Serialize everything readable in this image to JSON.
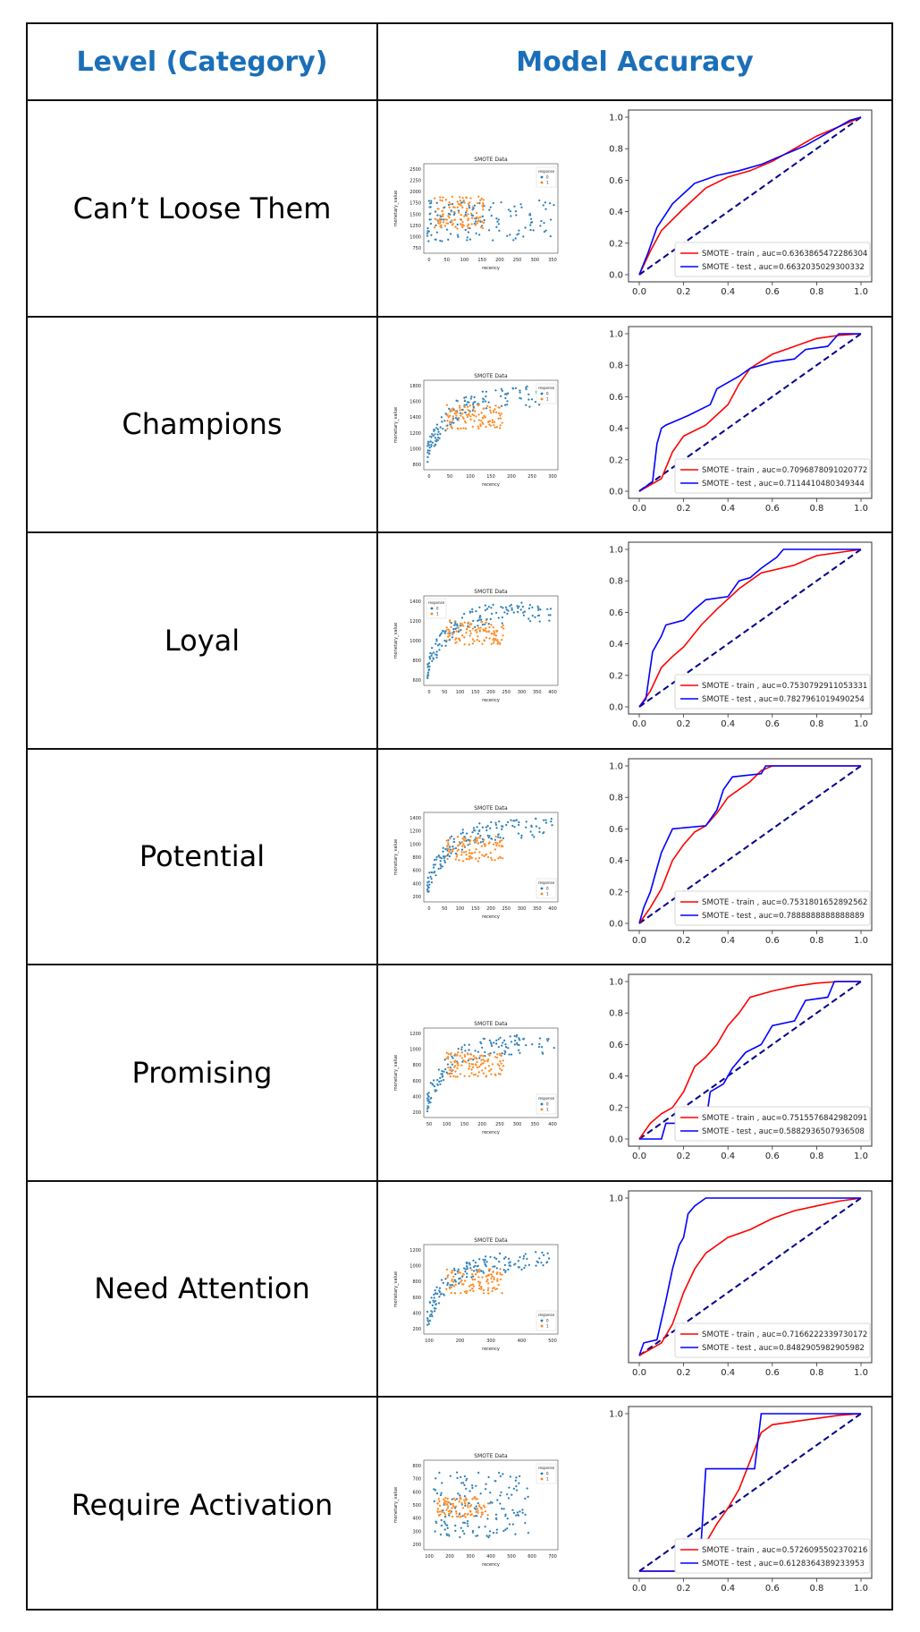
{
  "header": {
    "col1": "Level (Category)",
    "col2": "Model Accuracy"
  },
  "colors": {
    "header": "#1a6fb8",
    "train": "#ff0000",
    "test": "#0000ff",
    "diag": "#00008b",
    "class0": "#1f77b4",
    "class1": "#ff7f0e"
  },
  "rows": [
    {
      "category": "Can’t Loose Them",
      "scatter": {
        "title": "SMOTE Data",
        "xlabel": "recency",
        "ylabel": "monetary_value",
        "legend_title": "response",
        "legend": [
          "0",
          "1"
        ],
        "xticks": [
          "0",
          "50",
          "100",
          "150",
          "200",
          "250",
          "300",
          "350"
        ],
        "yticks": [
          "750",
          "1000",
          "1250",
          "1500",
          "1750",
          "2000",
          "2250",
          "2500"
        ]
      },
      "roc": {
        "train_label": "SMOTE - train , auc=0.6363865472286304",
        "test_label": "SMOTE - test , auc=0.6632035029300332",
        "xticks": [
          "0.0",
          "0.2",
          "0.4",
          "0.6",
          "0.8",
          "1.0"
        ],
        "yticks": [
          "0.0",
          "0.2",
          "0.4",
          "0.6",
          "0.8",
          "1.0"
        ]
      }
    },
    {
      "category": "Champions",
      "scatter": {
        "title": "SMOTE Data",
        "xlabel": "recency",
        "ylabel": "monetary_value",
        "legend_title": "response",
        "legend": [
          "0",
          "1"
        ],
        "xticks": [
          "0",
          "50",
          "100",
          "150",
          "200",
          "250",
          "300"
        ],
        "yticks": [
          "800",
          "1000",
          "1200",
          "1400",
          "1600",
          "1800"
        ]
      },
      "roc": {
        "train_label": "SMOTE - train , auc=0.7096878091020772",
        "test_label": "SMOTE - test , auc=0.7114410480349344",
        "xticks": [
          "0.0",
          "0.2",
          "0.4",
          "0.6",
          "0.8",
          "1.0"
        ],
        "yticks": [
          "0.0",
          "0.2",
          "0.4",
          "0.6",
          "0.8",
          "1.0"
        ]
      }
    },
    {
      "category": "Loyal",
      "scatter": {
        "title": "SMOTE Data",
        "xlabel": "recency",
        "ylabel": "monetary_value",
        "legend_title": "response",
        "legend": [
          "0",
          "1"
        ],
        "xticks": [
          "0",
          "50",
          "100",
          "150",
          "200",
          "250",
          "300",
          "350",
          "400"
        ],
        "yticks": [
          "600",
          "800",
          "1000",
          "1200",
          "1400"
        ]
      },
      "roc": {
        "train_label": "SMOTE - train , auc=0.7530792911053331",
        "test_label": "SMOTE - test , auc=0.7827961019490254",
        "xticks": [
          "0.0",
          "0.2",
          "0.4",
          "0.6",
          "0.8",
          "1.0"
        ],
        "yticks": [
          "0.0",
          "0.2",
          "0.4",
          "0.6",
          "0.8",
          "1.0"
        ]
      }
    },
    {
      "category": "Potential",
      "scatter": {
        "title": "SMOTE Data",
        "xlabel": "recency",
        "ylabel": "monetary_value",
        "legend_title": "response",
        "legend": [
          "0",
          "1"
        ],
        "xticks": [
          "0",
          "50",
          "100",
          "150",
          "200",
          "250",
          "300",
          "350",
          "400"
        ],
        "yticks": [
          "200",
          "400",
          "600",
          "800",
          "1000",
          "1200",
          "1400"
        ]
      },
      "roc": {
        "train_label": "SMOTE - train , auc=0.7531801652892562",
        "test_label": "SMOTE - test , auc=0.7888888888888889",
        "xticks": [
          "0.0",
          "0.2",
          "0.4",
          "0.6",
          "0.8",
          "1.0"
        ],
        "yticks": [
          "0.0",
          "0.2",
          "0.4",
          "0.6",
          "0.8",
          "1.0"
        ]
      }
    },
    {
      "category": "Promising",
      "scatter": {
        "title": "SMOTE Data",
        "xlabel": "recency",
        "ylabel": "monetary_value",
        "legend_title": "response",
        "legend": [
          "0",
          "1"
        ],
        "xticks": [
          "50",
          "100",
          "150",
          "200",
          "250",
          "300",
          "350",
          "400"
        ],
        "yticks": [
          "200",
          "400",
          "600",
          "800",
          "1000",
          "1200"
        ]
      },
      "roc": {
        "train_label": "SMOTE - train , auc=0.7515576842982091",
        "test_label": "SMOTE - test , auc=0.5882936507936508",
        "xticks": [
          "0.0",
          "0.2",
          "0.4",
          "0.6",
          "0.8",
          "1.0"
        ],
        "yticks": [
          "0.0",
          "0.2",
          "0.4",
          "0.6",
          "0.8",
          "1.0"
        ]
      }
    },
    {
      "category": "Need Attention",
      "scatter": {
        "title": "SMOTE Data",
        "xlabel": "recency",
        "ylabel": "monetary_value",
        "legend_title": "response",
        "legend": [
          "0",
          "1"
        ],
        "xticks": [
          "100",
          "200",
          "300",
          "400",
          "500"
        ],
        "yticks": [
          "200",
          "400",
          "600",
          "800",
          "1000",
          "1200"
        ]
      },
      "roc": {
        "train_label": "SMOTE - train , auc=0.7166222339730172",
        "test_label": "SMOTE - test , auc=0.8482905982905982",
        "xticks": [
          "0.0",
          "0.2",
          "0.4",
          "0.6",
          "0.8",
          "1.0"
        ],
        "yticks": [
          "1.0"
        ]
      }
    },
    {
      "category": "Require Activation",
      "scatter": {
        "title": "SMOTE Data",
        "xlabel": "recency",
        "ylabel": "monetary_value",
        "legend_title": "response",
        "legend": [
          "0",
          "1"
        ],
        "xticks": [
          "100",
          "200",
          "300",
          "400",
          "500",
          "600",
          "700"
        ],
        "yticks": [
          "200",
          "300",
          "400",
          "500",
          "600",
          "700",
          "800"
        ]
      },
      "roc": {
        "train_label": "SMOTE - train , auc=0.5726095502370216",
        "test_label": "SMOTE - test , auc=0.6128364389233953",
        "xticks": [
          "0.0",
          "0.2",
          "0.4",
          "0.6",
          "0.8",
          "1.0"
        ],
        "yticks": [
          "1.0"
        ]
      }
    }
  ]
}
